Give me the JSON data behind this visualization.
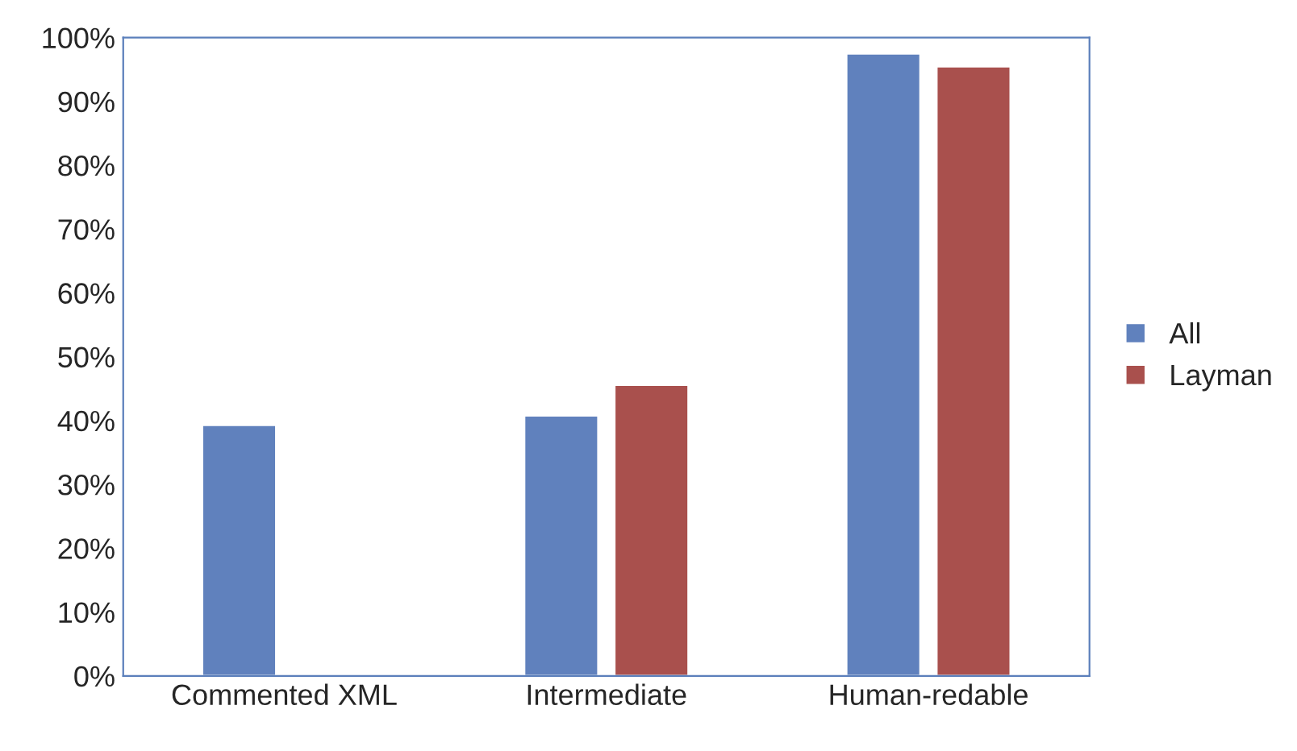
{
  "chart_data": {
    "type": "bar",
    "categories": [
      "Commented XML",
      "Intermediate",
      "Human-redable"
    ],
    "series": [
      {
        "name": "All",
        "color": "#6081bd",
        "values": [
          39.3,
          40.8,
          97.5
        ]
      },
      {
        "name": "Layman",
        "color": "#a9504d",
        "values": [
          null,
          45.6,
          95.5
        ]
      }
    ],
    "ylim": [
      0,
      100
    ],
    "yticks": [
      {
        "value": 0,
        "label": "0%"
      },
      {
        "value": 10,
        "label": "10%"
      },
      {
        "value": 20,
        "label": "20%"
      },
      {
        "value": 30,
        "label": "30%"
      },
      {
        "value": 40,
        "label": "40%"
      },
      {
        "value": 50,
        "label": "50%"
      },
      {
        "value": 60,
        "label": "60%"
      },
      {
        "value": 70,
        "label": "70%"
      },
      {
        "value": 80,
        "label": "80%"
      },
      {
        "value": 90,
        "label": "90%"
      },
      {
        "value": 100,
        "label": "100%"
      }
    ],
    "grid": false,
    "legend": "right"
  }
}
